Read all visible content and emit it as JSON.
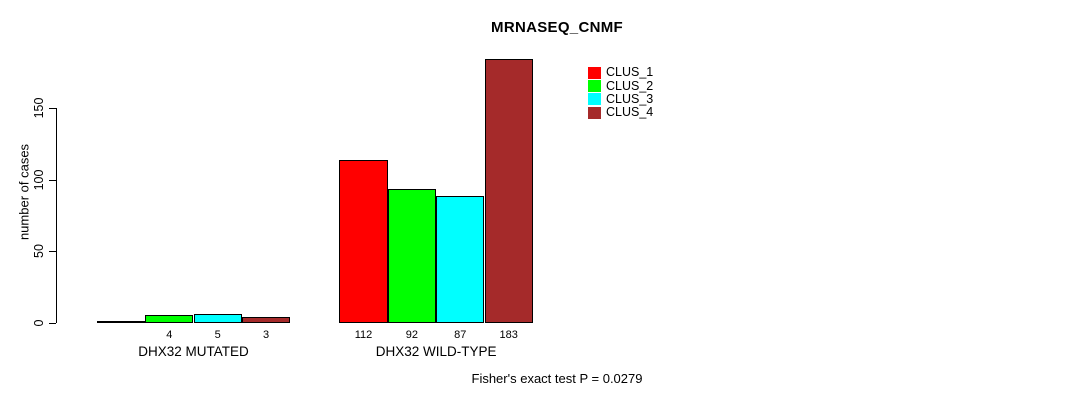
{
  "chart_data": {
    "type": "bar",
    "title": "MRNASEQ_CNMF",
    "ylabel": "number of cases",
    "xlabel": "",
    "annotation": "Fisher's exact test P = 0.0279",
    "categories": [
      "DHX32 MUTATED",
      "DHX32 WILD-TYPE"
    ],
    "series": [
      {
        "name": "CLUS_1",
        "color": "#ff0000",
        "values": [
          0,
          112
        ]
      },
      {
        "name": "CLUS_2",
        "color": "#00ff00",
        "values": [
          4,
          92
        ]
      },
      {
        "name": "CLUS_3",
        "color": "#00ffff",
        "values": [
          5,
          87
        ]
      },
      {
        "name": "CLUS_4",
        "color": "#a52a2a",
        "values": [
          3,
          183
        ]
      }
    ],
    "bar_labels": [
      [
        "",
        "4",
        "5",
        "3"
      ],
      [
        "112",
        "92",
        "87",
        "183"
      ]
    ],
    "yticks": [
      0,
      50,
      100,
      150
    ],
    "ylim": [
      0,
      183
    ],
    "grid": false,
    "legend_position": "top-right-inside",
    "axis_color": "#000000",
    "background_color": "#ffffff"
  }
}
